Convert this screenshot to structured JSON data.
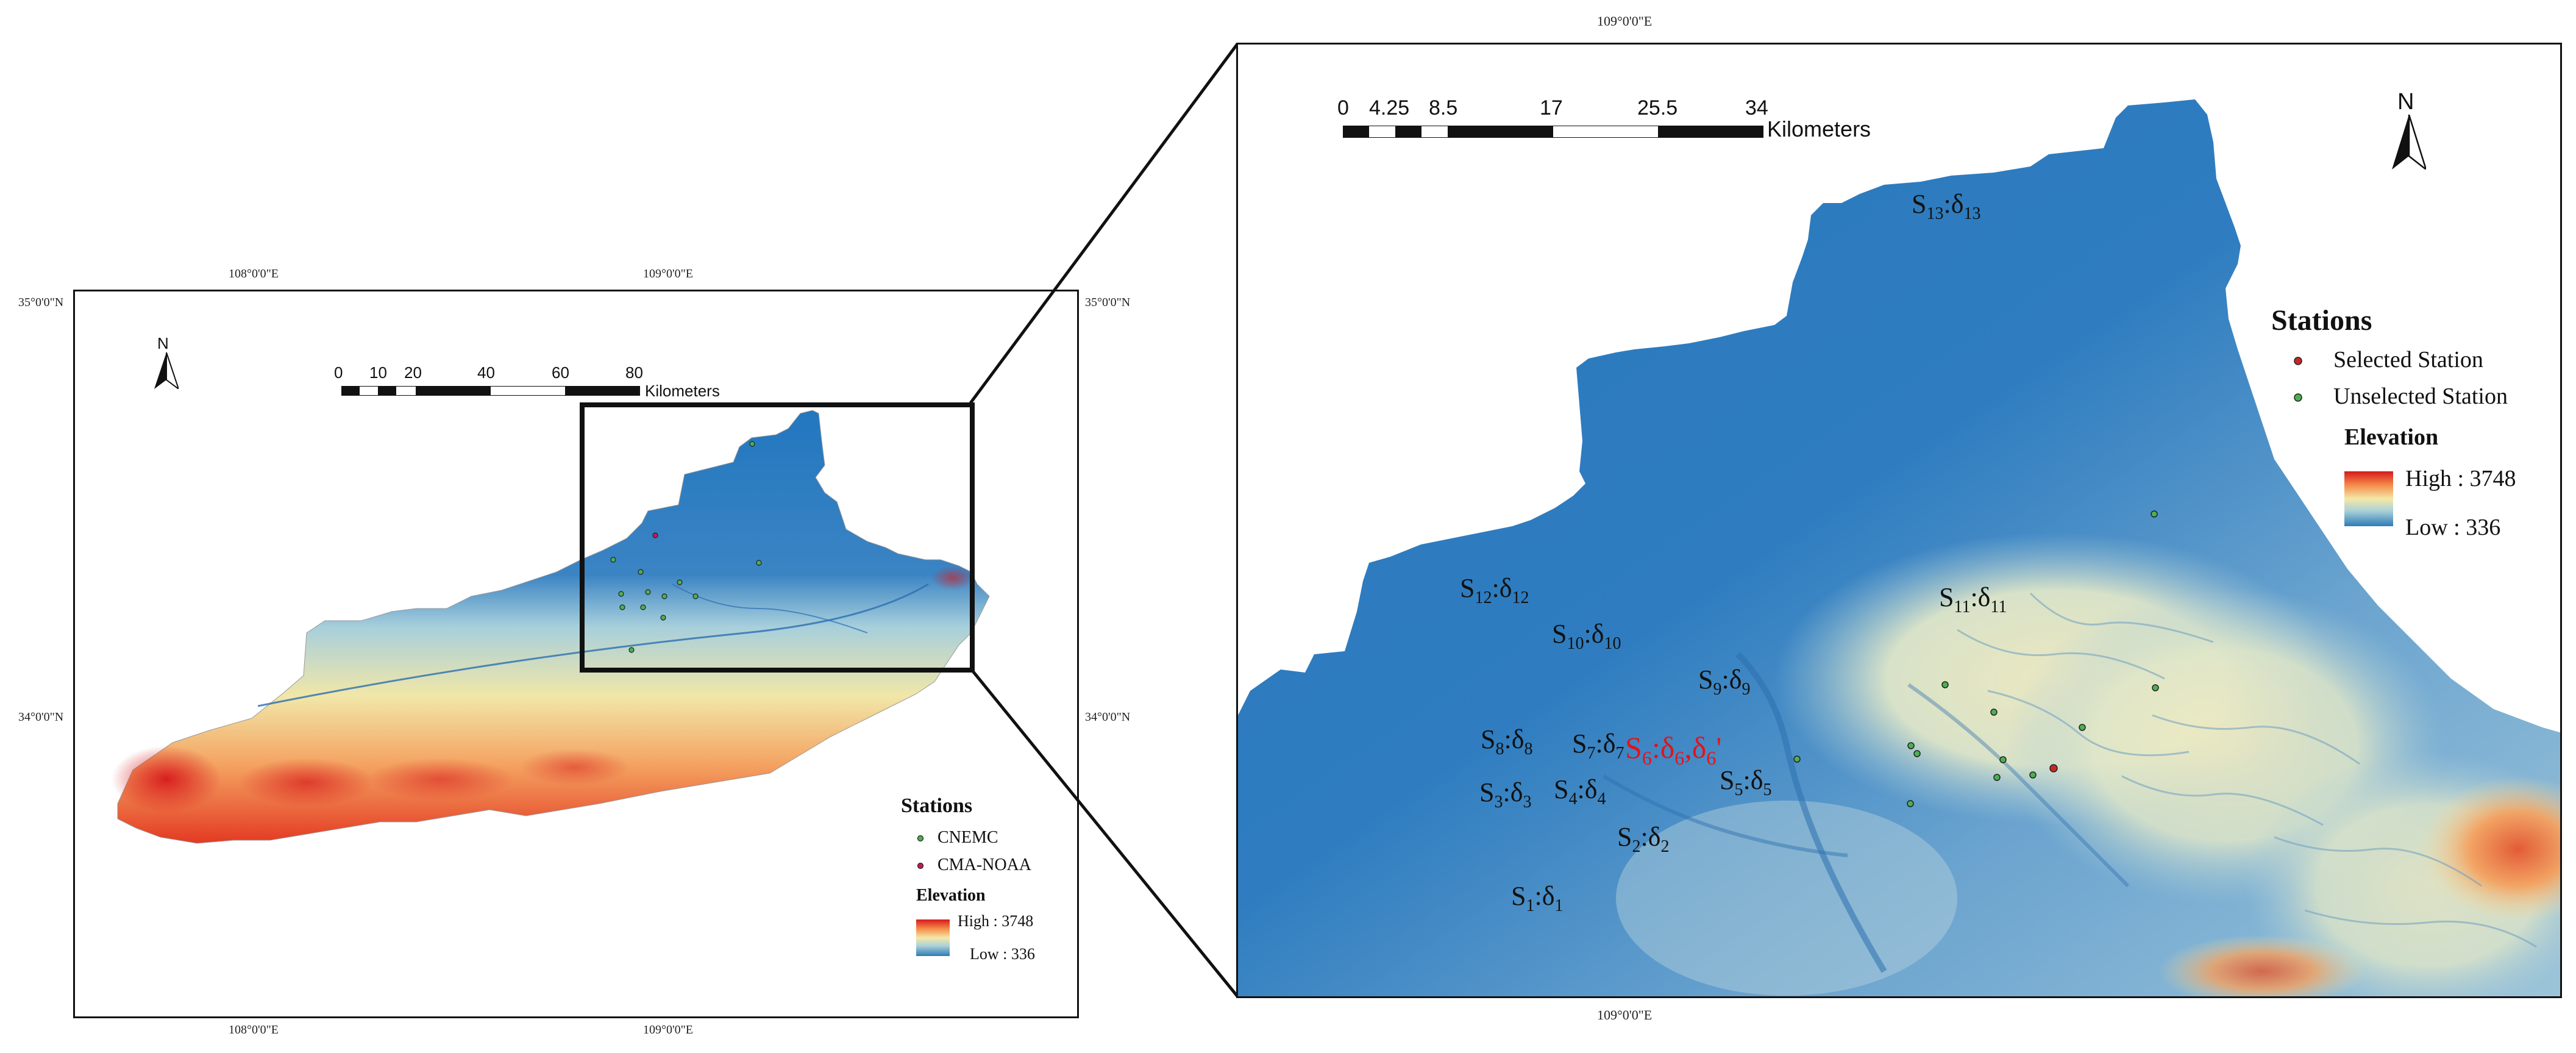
{
  "overview": {
    "coords": {
      "top_lon_108": "108°0'0\"E",
      "top_lon_109": "109°0'0\"E",
      "bottom_lon_108": "108°0'0\"E",
      "bottom_lon_109": "109°0'0\"E",
      "left_lat_35": "35°0'0\"N",
      "left_lat_34": "34°0'0\"N",
      "right_lat_35": "35°0'0\"N",
      "right_lat_34": "34°0'0\"N"
    },
    "north_label": "N",
    "scalebar": {
      "ticks": [
        "0",
        "10",
        "20",
        "40",
        "60",
        "80"
      ],
      "unit": "Kilometers"
    },
    "legend": {
      "title": "Stations",
      "items": [
        {
          "label": "CNEMC",
          "color": "#4caf50"
        },
        {
          "label": "CMA-NOAA",
          "color": "#c2185b"
        }
      ],
      "elevation_title": "Elevation",
      "high": "High : 3748",
      "low": "Low : 336"
    }
  },
  "detail": {
    "coords": {
      "top_lon": "109°0'0\"E",
      "bottom_lon": "109°0'0\"E"
    },
    "north_label": "N",
    "scalebar": {
      "ticks": [
        "0",
        "4.25",
        "8.5",
        "17",
        "25.5",
        "34"
      ],
      "unit": "Kilometers"
    },
    "legend": {
      "title": "Stations",
      "selected": "Selected Station",
      "unselected": "Unselected Station",
      "elevation_title": "Elevation",
      "high": "High : 3748",
      "low": "Low : 336",
      "selected_color": "#c62828",
      "unselected_color": "#4caf50"
    },
    "stations": [
      {
        "id": "S1",
        "s": "S",
        "ssub": "1",
        "sep": ":δ",
        "dsub": "1",
        "extra": "",
        "selected": false
      },
      {
        "id": "S2",
        "s": "S",
        "ssub": "2",
        "sep": ":δ",
        "dsub": "2",
        "extra": "",
        "selected": false
      },
      {
        "id": "S3",
        "s": "S",
        "ssub": "3",
        "sep": ":δ",
        "dsub": "3",
        "extra": "",
        "selected": false
      },
      {
        "id": "S4",
        "s": "S",
        "ssub": "4",
        "sep": ":δ",
        "dsub": "4",
        "extra": "",
        "selected": false
      },
      {
        "id": "S5",
        "s": "S",
        "ssub": "5",
        "sep": ":δ",
        "dsub": "5",
        "extra": "",
        "selected": false
      },
      {
        "id": "S6",
        "s": "S",
        "ssub": "6",
        "sep": ":δ",
        "dsub": "6",
        "extra": ",δ",
        "extrasub": "6",
        "extrasuffix": "'",
        "selected": true
      },
      {
        "id": "S7",
        "s": "S",
        "ssub": "7",
        "sep": ":δ",
        "dsub": "7",
        "extra": "",
        "selected": false
      },
      {
        "id": "S8",
        "s": "S",
        "ssub": "8",
        "sep": ":δ",
        "dsub": "8",
        "extra": "",
        "selected": false
      },
      {
        "id": "S9",
        "s": "S",
        "ssub": "9",
        "sep": ":δ",
        "dsub": "9",
        "extra": "",
        "selected": false
      },
      {
        "id": "S10",
        "s": "S",
        "ssub": "10",
        "sep": ":δ",
        "dsub": "10",
        "extra": "",
        "selected": false
      },
      {
        "id": "S11",
        "s": "S",
        "ssub": "11",
        "sep": ":δ",
        "dsub": "11",
        "extra": "",
        "selected": false
      },
      {
        "id": "S12",
        "s": "S",
        "ssub": "12",
        "sep": ":δ",
        "dsub": "12",
        "extra": "",
        "selected": false
      },
      {
        "id": "S13",
        "s": "S",
        "ssub": "13",
        "sep": ":δ",
        "dsub": "13",
        "extra": "",
        "selected": false
      }
    ]
  }
}
